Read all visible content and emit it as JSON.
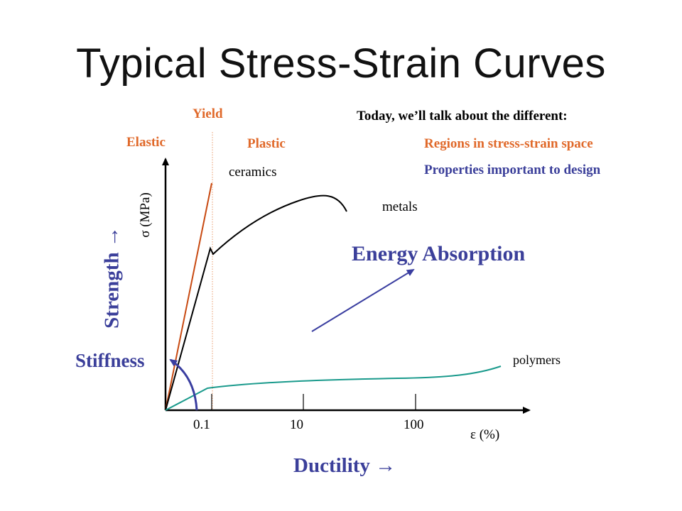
{
  "title": "Typical Stress-Strain Curves",
  "notes": {
    "heading": "Today, we’ll talk about the different:",
    "item1": "Regions in stress-strain space",
    "item2": "Properties important to design"
  },
  "region_labels": {
    "yield": "Yield",
    "elastic": "Elastic",
    "plastic": "Plastic"
  },
  "curve_labels": {
    "ceramics": "ceramics",
    "metals": "metals",
    "polymers": "polymers"
  },
  "property_labels": {
    "energy_absorption": "Energy Absorption",
    "stiffness": "Stiffness",
    "strength": "Strength →",
    "ductility": "Ductility →"
  },
  "axes": {
    "y_label": "σ (MPa)",
    "x_label": "ε (%)",
    "x_ticks": [
      "0.1",
      "10",
      "100"
    ]
  },
  "colors": {
    "orange_text": "#e0692a",
    "blue_text": "#3b3f9a",
    "ceramics_curve": "#c84a12",
    "polymer_curve": "#1a9a8c",
    "arrow_blue": "#3a3ea0",
    "axis": "#000000"
  }
}
